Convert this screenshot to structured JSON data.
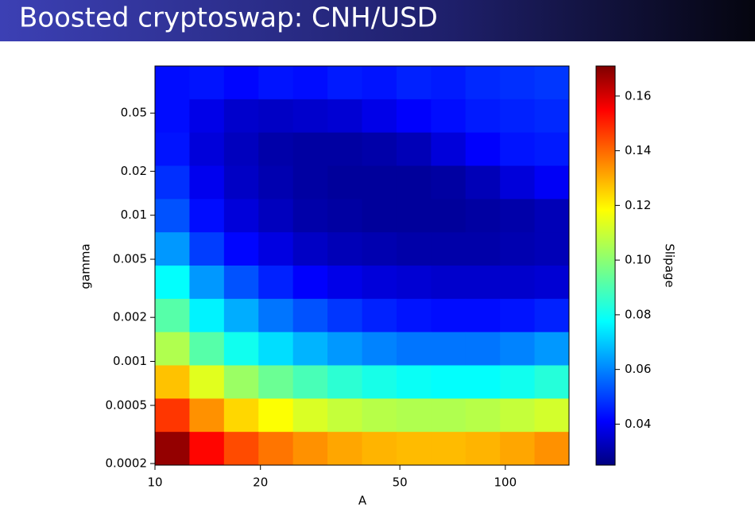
{
  "chart_data": {
    "type": "heatmap",
    "title": "Boosted cryptoswap: CNH/USD",
    "xlabel": "A",
    "ylabel": "gamma",
    "xscale": "log",
    "yscale": "log",
    "colormap": "jet",
    "xlim": [
      10,
      152
    ],
    "ylim": [
      0.000195,
      0.105
    ],
    "xticks": [
      10,
      20,
      50,
      100
    ],
    "yticks": [
      0.0002,
      0.0005,
      0.001,
      0.002,
      0.005,
      0.01,
      0.02,
      0.05
    ],
    "values": [
      [
        0.045,
        0.046,
        0.044,
        0.046,
        0.045,
        0.047,
        0.046,
        0.048,
        0.047,
        0.049,
        0.05,
        0.051
      ],
      [
        0.045,
        0.04,
        0.036,
        0.035,
        0.036,
        0.037,
        0.04,
        0.043,
        0.045,
        0.047,
        0.048,
        0.049
      ],
      [
        0.046,
        0.038,
        0.034,
        0.031,
        0.03,
        0.03,
        0.031,
        0.033,
        0.038,
        0.043,
        0.046,
        0.047
      ],
      [
        0.05,
        0.041,
        0.035,
        0.032,
        0.03,
        0.029,
        0.029,
        0.029,
        0.03,
        0.033,
        0.038,
        0.042
      ],
      [
        0.055,
        0.045,
        0.038,
        0.034,
        0.031,
        0.03,
        0.029,
        0.029,
        0.029,
        0.03,
        0.031,
        0.033
      ],
      [
        0.065,
        0.052,
        0.044,
        0.039,
        0.035,
        0.033,
        0.032,
        0.031,
        0.031,
        0.031,
        0.032,
        0.033
      ],
      [
        0.08,
        0.065,
        0.055,
        0.048,
        0.043,
        0.04,
        0.038,
        0.037,
        0.036,
        0.036,
        0.036,
        0.037
      ],
      [
        0.092,
        0.078,
        0.068,
        0.06,
        0.055,
        0.051,
        0.048,
        0.046,
        0.045,
        0.045,
        0.046,
        0.048
      ],
      [
        0.105,
        0.092,
        0.082,
        0.075,
        0.069,
        0.065,
        0.062,
        0.06,
        0.06,
        0.06,
        0.062,
        0.065
      ],
      [
        0.125,
        0.112,
        0.102,
        0.095,
        0.09,
        0.086,
        0.083,
        0.081,
        0.08,
        0.08,
        0.082,
        0.085
      ],
      [
        0.145,
        0.132,
        0.122,
        0.116,
        0.111,
        0.108,
        0.106,
        0.105,
        0.105,
        0.106,
        0.108,
        0.11
      ],
      [
        0.168,
        0.152,
        0.142,
        0.136,
        0.132,
        0.129,
        0.127,
        0.126,
        0.126,
        0.127,
        0.129,
        0.132
      ]
    ],
    "colorbar": {
      "label": "Slipage",
      "lim": [
        0.025,
        0.171
      ],
      "ticks": [
        0.04,
        0.06,
        0.08,
        {
          "value": 0.1,
          "label": "0.10"
        },
        0.12,
        0.14,
        0.16
      ]
    }
  }
}
